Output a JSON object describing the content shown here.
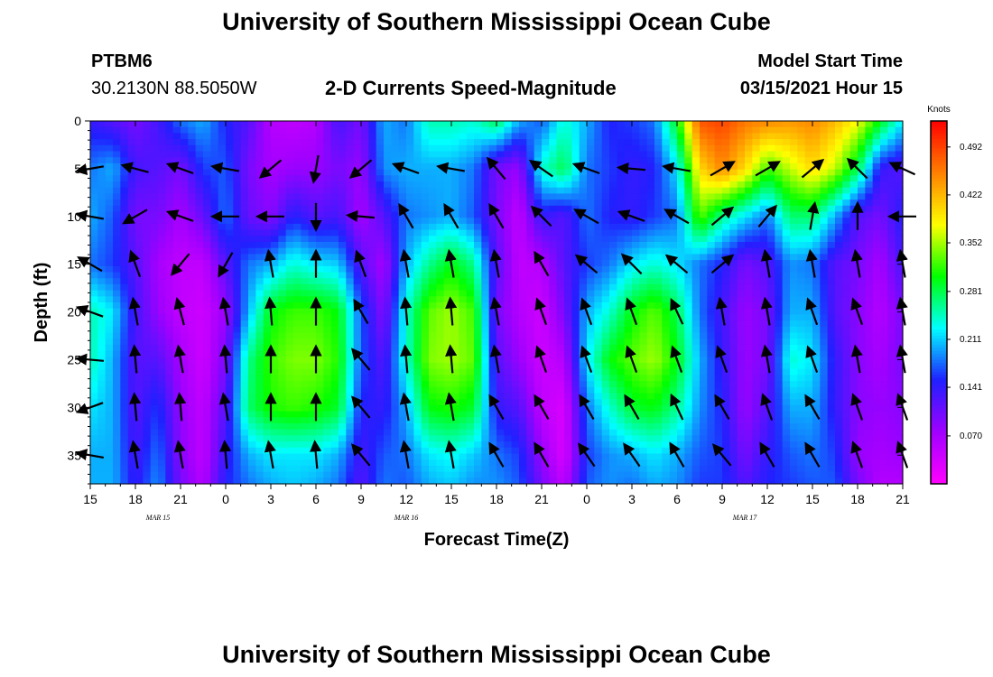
{
  "header": {
    "title": "University of Southern Mississippi Ocean Cube",
    "station_id": "PTBM6",
    "station_coords": "30.2130N 88.5050W",
    "chart_title": "2-D Currents Speed-Magnitude",
    "model_label": "Model Start Time",
    "model_time": "03/15/2021 Hour 15"
  },
  "footer": {
    "title": "University of Southern Mississippi Ocean Cube"
  },
  "chart_data": {
    "type": "heatmap",
    "title": "2-D Currents Speed-Magnitude",
    "xlabel": "Forecast Time(Z)",
    "ylabel": "Depth (ft)",
    "x_ticks": [
      "15",
      "18",
      "21",
      "0",
      "3",
      "6",
      "9",
      "12",
      "15",
      "18",
      "21",
      "0",
      "3",
      "6",
      "9",
      "12",
      "15",
      "18",
      "21"
    ],
    "x_hours": [
      0,
      3,
      6,
      9,
      12,
      15,
      18,
      21,
      24,
      27,
      30,
      33,
      36,
      39,
      42,
      45,
      48,
      51,
      54
    ],
    "date_labels": [
      {
        "text": "MAR 15",
        "hour": 4.5
      },
      {
        "text": "MAR 16",
        "hour": 21
      },
      {
        "text": "MAR 17",
        "hour": 43.5
      }
    ],
    "y_ticks": [
      0,
      5,
      10,
      15,
      20,
      25,
      30,
      35
    ],
    "ylim": [
      0,
      38
    ],
    "xlim": [
      0,
      54
    ],
    "colorbar": {
      "unit": "Knots",
      "ticks": [
        "0.492",
        "0.422",
        "0.352",
        "0.281",
        "0.211",
        "0.141",
        "0.070"
      ],
      "tick_values": [
        0.492,
        0.422,
        0.352,
        0.281,
        0.211,
        0.141,
        0.07
      ],
      "range": [
        0.0,
        0.53
      ],
      "colors": [
        "#ff00ff",
        "#a000ff",
        "#2020ff",
        "#00ffff",
        "#00ff00",
        "#ffff00",
        "#ff8000",
        "#ff0000"
      ]
    },
    "speed_grid": {
      "hours": [
        0,
        1.5,
        3,
        4.5,
        6,
        7.5,
        9,
        10.5,
        12,
        13.5,
        15,
        16.5,
        18,
        19.5,
        21,
        22.5,
        24,
        25.5,
        27,
        28.5,
        30,
        31.5,
        33,
        34.5,
        36,
        37.5,
        39,
        40.5,
        42,
        43.5,
        45,
        46.5,
        48,
        49.5,
        51,
        52.5,
        54
      ],
      "depths": [
        0,
        5,
        10,
        15,
        20,
        25,
        30,
        35,
        38
      ],
      "values": [
        [
          0.14,
          0.18,
          0.2,
          0.18,
          0.25,
          0.25,
          0.22,
          0.2,
          0.2
        ],
        [
          0.12,
          0.2,
          0.17,
          0.16,
          0.22,
          0.2,
          0.2,
          0.2,
          0.2
        ],
        [
          0.1,
          0.13,
          0.1,
          0.12,
          0.13,
          0.12,
          0.12,
          0.13,
          0.14
        ],
        [
          0.13,
          0.12,
          0.1,
          0.07,
          0.08,
          0.12,
          0.16,
          0.18,
          0.19
        ],
        [
          0.18,
          0.1,
          0.07,
          0.05,
          0.05,
          0.07,
          0.08,
          0.09,
          0.1
        ],
        [
          0.2,
          0.16,
          0.11,
          0.05,
          0.04,
          0.04,
          0.05,
          0.05,
          0.06
        ],
        [
          0.15,
          0.17,
          0.18,
          0.12,
          0.08,
          0.1,
          0.12,
          0.14,
          0.15
        ],
        [
          0.12,
          0.1,
          0.11,
          0.18,
          0.2,
          0.26,
          0.27,
          0.2,
          0.18
        ],
        [
          0.06,
          0.07,
          0.09,
          0.2,
          0.3,
          0.32,
          0.31,
          0.22,
          0.2
        ],
        [
          0.05,
          0.08,
          0.15,
          0.24,
          0.32,
          0.34,
          0.32,
          0.22,
          0.21
        ],
        [
          0.06,
          0.08,
          0.12,
          0.22,
          0.32,
          0.34,
          0.31,
          0.22,
          0.2
        ],
        [
          0.13,
          0.1,
          0.13,
          0.21,
          0.3,
          0.31,
          0.29,
          0.2,
          0.18
        ],
        [
          0.1,
          0.08,
          0.07,
          0.12,
          0.17,
          0.17,
          0.15,
          0.13,
          0.12
        ],
        [
          0.2,
          0.19,
          0.12,
          0.07,
          0.09,
          0.12,
          0.14,
          0.17,
          0.18
        ],
        [
          0.18,
          0.2,
          0.18,
          0.2,
          0.24,
          0.24,
          0.2,
          0.18,
          0.17
        ],
        [
          0.25,
          0.2,
          0.19,
          0.26,
          0.33,
          0.34,
          0.3,
          0.22,
          0.2
        ],
        [
          0.25,
          0.2,
          0.2,
          0.3,
          0.35,
          0.35,
          0.31,
          0.23,
          0.21
        ],
        [
          0.24,
          0.18,
          0.17,
          0.26,
          0.32,
          0.33,
          0.29,
          0.21,
          0.19
        ],
        [
          0.28,
          0.1,
          0.1,
          0.12,
          0.1,
          0.12,
          0.14,
          0.18,
          0.19
        ],
        [
          0.2,
          0.08,
          0.05,
          0.05,
          0.06,
          0.08,
          0.12,
          0.16,
          0.17
        ],
        [
          0.17,
          0.24,
          0.14,
          0.06,
          0.04,
          0.04,
          0.05,
          0.08,
          0.1
        ],
        [
          0.24,
          0.28,
          0.12,
          0.12,
          0.1,
          0.06,
          0.03,
          0.03,
          0.05
        ],
        [
          0.2,
          0.18,
          0.18,
          0.16,
          0.2,
          0.22,
          0.18,
          0.16,
          0.17
        ],
        [
          0.15,
          0.16,
          0.15,
          0.18,
          0.24,
          0.3,
          0.24,
          0.19,
          0.19
        ],
        [
          0.16,
          0.14,
          0.14,
          0.22,
          0.3,
          0.33,
          0.29,
          0.2,
          0.18
        ],
        [
          0.18,
          0.15,
          0.16,
          0.24,
          0.33,
          0.35,
          0.3,
          0.22,
          0.2
        ],
        [
          0.3,
          0.22,
          0.18,
          0.22,
          0.28,
          0.3,
          0.26,
          0.2,
          0.19
        ],
        [
          0.48,
          0.4,
          0.33,
          0.18,
          0.18,
          0.2,
          0.19,
          0.17,
          0.16
        ],
        [
          0.49,
          0.45,
          0.26,
          0.15,
          0.13,
          0.14,
          0.15,
          0.16,
          0.16
        ],
        [
          0.46,
          0.4,
          0.22,
          0.1,
          0.08,
          0.08,
          0.08,
          0.1,
          0.12
        ],
        [
          0.45,
          0.32,
          0.18,
          0.12,
          0.1,
          0.1,
          0.12,
          0.14,
          0.15
        ],
        [
          0.44,
          0.36,
          0.27,
          0.19,
          0.2,
          0.24,
          0.2,
          0.17,
          0.16
        ],
        [
          0.45,
          0.4,
          0.27,
          0.18,
          0.2,
          0.22,
          0.2,
          0.18,
          0.17
        ],
        [
          0.42,
          0.36,
          0.2,
          0.12,
          0.12,
          0.14,
          0.14,
          0.16,
          0.17
        ],
        [
          0.38,
          0.28,
          0.12,
          0.1,
          0.09,
          0.09,
          0.09,
          0.08,
          0.1
        ],
        [
          0.3,
          0.14,
          0.1,
          0.07,
          0.06,
          0.07,
          0.08,
          0.07,
          0.06
        ],
        [
          0.22,
          0.12,
          0.15,
          0.13,
          0.1,
          0.1,
          0.09,
          0.08,
          0.06
        ]
      ]
    },
    "vectors": {
      "hours": [
        0,
        3,
        6,
        9,
        12,
        15,
        18,
        21,
        24,
        27,
        30,
        33,
        36,
        39,
        42,
        45,
        48,
        51,
        54
      ],
      "depths": [
        5,
        10,
        15,
        20,
        25,
        30,
        35
      ],
      "angles_deg": [
        [
          190,
          170,
          150,
          160,
          175,
          200,
          170
        ],
        [
          165,
          210,
          110,
          100,
          95,
          95,
          100
        ],
        [
          160,
          160,
          230,
          105,
          100,
          95,
          100
        ],
        [
          170,
          180,
          240,
          100,
          95,
          100,
          95
        ],
        [
          220,
          180,
          100,
          95,
          90,
          90,
          100
        ],
        [
          260,
          270,
          90,
          90,
          90,
          90,
          95
        ],
        [
          220,
          175,
          110,
          120,
          130,
          130,
          130
        ],
        [
          160,
          120,
          100,
          95,
          95,
          100,
          100
        ],
        [
          170,
          120,
          100,
          95,
          95,
          100,
          100
        ],
        [
          130,
          120,
          100,
          100,
          100,
          120,
          120
        ],
        [
          145,
          135,
          120,
          110,
          110,
          120,
          120
        ],
        [
          160,
          150,
          140,
          110,
          110,
          120,
          125
        ],
        [
          175,
          160,
          135,
          110,
          110,
          120,
          125
        ],
        [
          170,
          150,
          140,
          115,
          110,
          115,
          120
        ],
        [
          30,
          40,
          40,
          100,
          110,
          120,
          130
        ],
        [
          30,
          50,
          100,
          100,
          100,
          110,
          120
        ],
        [
          40,
          80,
          100,
          110,
          110,
          120,
          120
        ],
        [
          135,
          90,
          100,
          110,
          100,
          110,
          110
        ],
        [
          155,
          180,
          100,
          100,
          100,
          110,
          110
        ]
      ]
    }
  }
}
